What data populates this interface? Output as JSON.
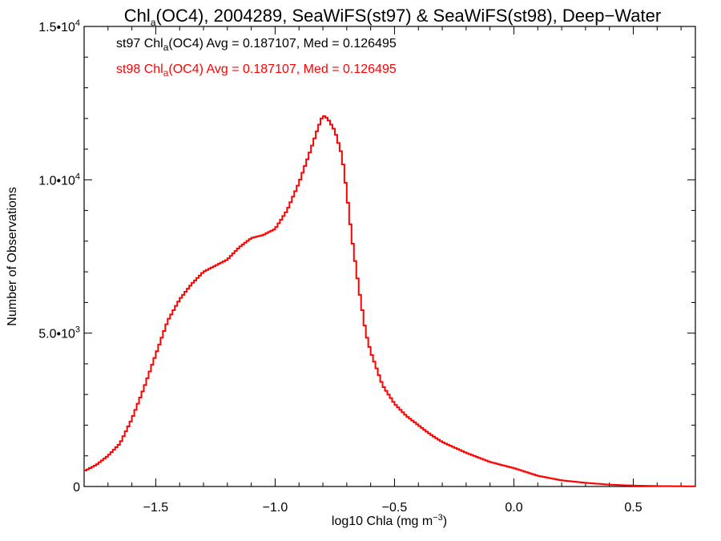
{
  "chart_data": {
    "type": "line",
    "title": {
      "pre": "Chl",
      "sub": "a",
      "post": "(OC4), 2004289, SeaWiFS(st97) & SeaWiFS(st98), Deep−Water"
    },
    "xlabel": {
      "pre": "log10 Chla (mg m",
      "sup": "−3",
      "post": ")"
    },
    "ylabel": "Number of Observations",
    "xlim": [
      -1.8,
      0.76
    ],
    "ylim": [
      0,
      15000
    ],
    "x_ticks": [
      -1.5,
      -1.0,
      -0.5,
      0.0,
      0.5
    ],
    "x_tick_labels": [
      "−1.5",
      "−1.0",
      "−0.5",
      "0.0",
      "0.5"
    ],
    "y_ticks": [
      0,
      5000,
      10000,
      15000
    ],
    "y_tick_labels": [
      {
        "base": "0",
        "sup": ""
      },
      {
        "base": "5.0•10",
        "sup": "3"
      },
      {
        "base": "1.0•10",
        "sup": "4"
      },
      {
        "base": "1.5•10",
        "sup": "4"
      }
    ],
    "grid": false,
    "legend": [
      {
        "pre": "st97 Chl",
        "sub": "a",
        "post": "(OC4) Avg = 0.187107, Med = 0.126495",
        "color": "#000000"
      },
      {
        "pre": "st98 Chl",
        "sub": "a",
        "post": "(OC4) Avg = 0.187107, Med = 0.126495",
        "color": "#ff0000"
      }
    ],
    "series": [
      {
        "color": "#ff0000",
        "style": "step",
        "x": [
          -1.8,
          -1.75,
          -1.7,
          -1.65,
          -1.6,
          -1.55,
          -1.5,
          -1.45,
          -1.4,
          -1.35,
          -1.3,
          -1.25,
          -1.2,
          -1.15,
          -1.1,
          -1.05,
          -1.0,
          -0.95,
          -0.9,
          -0.85,
          -0.82,
          -0.8,
          -0.78,
          -0.75,
          -0.72,
          -0.7,
          -0.68,
          -0.65,
          -0.62,
          -0.6,
          -0.55,
          -0.5,
          -0.45,
          -0.4,
          -0.35,
          -0.3,
          -0.2,
          -0.1,
          0.0,
          0.1,
          0.2,
          0.3,
          0.4,
          0.5,
          0.6,
          0.76
        ],
        "y": [
          500,
          700,
          1000,
          1400,
          2200,
          3200,
          4300,
          5400,
          6100,
          6600,
          7000,
          7200,
          7400,
          7800,
          8100,
          8200,
          8400,
          9000,
          9900,
          11000,
          11700,
          12100,
          12000,
          11600,
          10800,
          9600,
          8200,
          6500,
          5000,
          4400,
          3300,
          2700,
          2300,
          2000,
          1700,
          1450,
          1100,
          800,
          600,
          350,
          200,
          120,
          60,
          30,
          15,
          5
        ]
      }
    ]
  }
}
